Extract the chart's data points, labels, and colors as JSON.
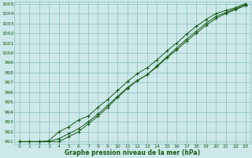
{
  "x": [
    0,
    1,
    2,
    3,
    4,
    5,
    6,
    7,
    8,
    9,
    10,
    11,
    12,
    13,
    14,
    15,
    16,
    17,
    18,
    19,
    20,
    21,
    22,
    23
  ],
  "line1": [
    991.0,
    991.0,
    991.0,
    991.0,
    991.3,
    991.8,
    992.3,
    993.0,
    993.8,
    994.7,
    995.6,
    996.5,
    997.2,
    997.8,
    998.6,
    999.5,
    1000.3,
    1001.2,
    1002.0,
    1002.8,
    1003.5,
    1004.0,
    1004.4,
    1004.8
  ],
  "line2": [
    991.0,
    991.0,
    991.0,
    991.1,
    992.0,
    992.5,
    993.2,
    993.6,
    994.5,
    995.3,
    996.2,
    997.1,
    997.9,
    998.5,
    999.3,
    1000.2,
    1001.0,
    1001.9,
    1002.7,
    1003.4,
    1004.0,
    1004.3,
    1004.6,
    1005.0
  ],
  "line3": [
    991.0,
    991.0,
    991.0,
    991.0,
    991.0,
    991.5,
    992.0,
    992.8,
    993.6,
    994.5,
    995.5,
    996.4,
    997.2,
    997.8,
    998.7,
    999.6,
    1000.5,
    1001.4,
    1002.2,
    1003.0,
    1003.7,
    1004.1,
    1004.5,
    1004.9
  ],
  "line_color": "#1a5c1a",
  "marker": "+",
  "bg_color": "#cce8e8",
  "grid_color": "#7ab5b5",
  "text_color": "#1a5c1a",
  "xlabel": "Graphe pression niveau de la mer (hPa)",
  "ylim_min": 991,
  "ylim_max": 1005,
  "yticks": [
    991,
    992,
    993,
    994,
    995,
    996,
    997,
    998,
    999,
    1000,
    1001,
    1002,
    1003,
    1004,
    1005
  ],
  "xticks": [
    0,
    1,
    2,
    3,
    4,
    5,
    6,
    7,
    8,
    9,
    10,
    11,
    12,
    13,
    14,
    15,
    16,
    17,
    18,
    19,
    20,
    21,
    22,
    23
  ],
  "figwidth": 3.2,
  "figheight": 2.0,
  "dpi": 100
}
